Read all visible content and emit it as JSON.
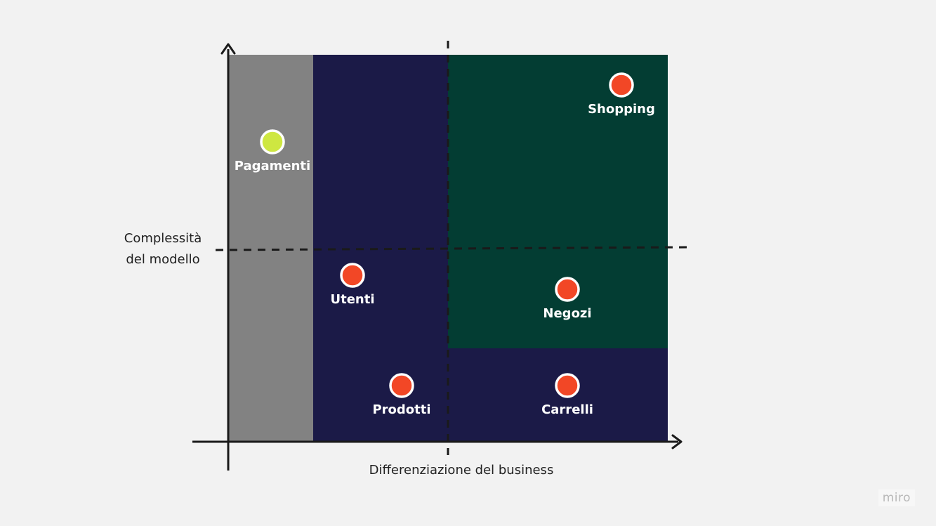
{
  "axes": {
    "x_label": "Differenziazione del business",
    "y_label_line1": "Complessità",
    "y_label_line2": "del modello"
  },
  "colors": {
    "background": "#f2f2f2",
    "generic_zone": "#828282",
    "supporting_zone": "#1b1a47",
    "core_zone": "#033d33",
    "core_point": "#f24726",
    "generic_point": "#cee741",
    "axis": "#1a1a1a"
  },
  "points": [
    {
      "id": "pagamenti",
      "label": "Pagamenti",
      "color": "#cee741"
    },
    {
      "id": "shopping",
      "label": "Shopping",
      "color": "#f24726"
    },
    {
      "id": "utenti",
      "label": "Utenti",
      "color": "#f24726"
    },
    {
      "id": "negozi",
      "label": "Negozi",
      "color": "#f24726"
    },
    {
      "id": "prodotti",
      "label": "Prodotti",
      "color": "#f24726"
    },
    {
      "id": "carrelli",
      "label": "Carrelli",
      "color": "#f24726"
    }
  ],
  "watermark": "miro"
}
